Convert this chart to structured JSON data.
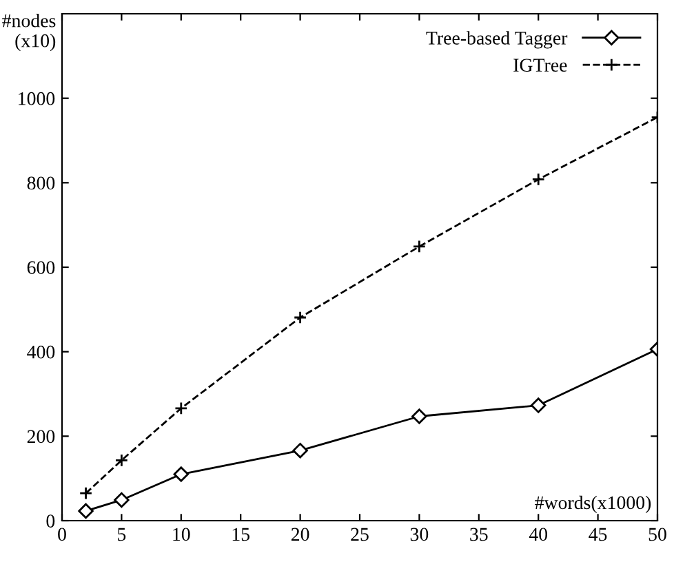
{
  "chart_data": {
    "type": "line",
    "ylabel": "#nodes\n(x10)",
    "xlabel": "#words(x1000)",
    "x": [
      2,
      5,
      10,
      20,
      30,
      40,
      50
    ],
    "series": [
      {
        "name": "Tree-based Tagger",
        "color": "#000000",
        "values": [
          23,
          49,
          110,
          166,
          247,
          273,
          406
        ],
        "marker": "diamond",
        "line_style": "solid"
      },
      {
        "name": "IGTree",
        "color": "#000000",
        "values": [
          65,
          143,
          266,
          481,
          649,
          808,
          955
        ],
        "marker": "cross",
        "line_style": "dashed"
      }
    ],
    "xlim": [
      0,
      50
    ],
    "xticks": [
      0,
      5,
      10,
      15,
      20,
      25,
      30,
      35,
      40,
      45,
      50
    ],
    "ylim": [
      0,
      1200
    ],
    "yticks": [
      0,
      200,
      400,
      600,
      800,
      1000
    ],
    "grid": false,
    "legend": "top right"
  }
}
